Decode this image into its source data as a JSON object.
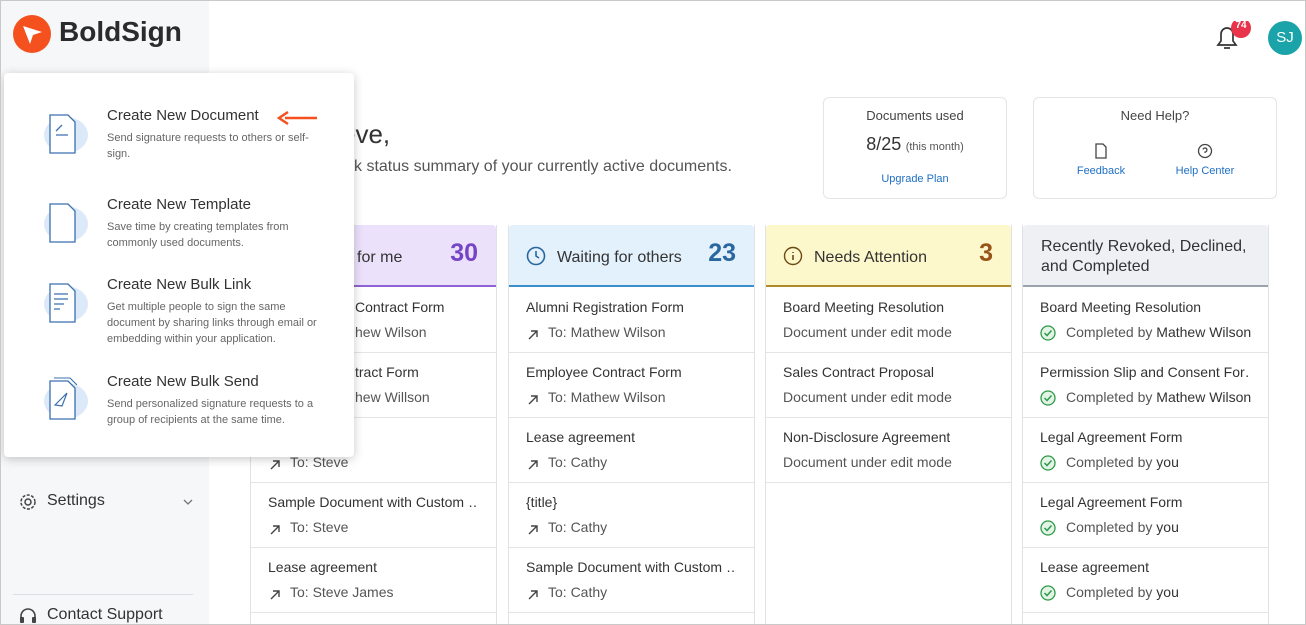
{
  "sidebar": {
    "logo": "BoldSign",
    "settings": "Settings",
    "contact_support": "Contact Support"
  },
  "header": {
    "notification_count": "74",
    "avatar": "SJ"
  },
  "greeting": {
    "title": "eve,",
    "subtitle": "k status summary of your currently active documents."
  },
  "create_menu": {
    "items": [
      {
        "title": "Create New Document",
        "description": "Send signature requests to others or self-sign."
      },
      {
        "title": "Create New Template",
        "description": "Save time by creating templates from commonly used documents."
      },
      {
        "title": "Create New Bulk Link",
        "description": "Get multiple people to sign the same document by sharing links through email or embedding within your application."
      },
      {
        "title": "Create New Bulk Send",
        "description": "Send personalized signature requests to a group of recipients at the same time."
      }
    ]
  },
  "usage": {
    "label": "Documents used",
    "used": "8/25",
    "period": "(this month)",
    "link": "Upgrade Plan"
  },
  "help": {
    "title": "Need Help?",
    "feedback": "Feedback",
    "help_center": "Help Center"
  },
  "columns": [
    {
      "title": "for me",
      "count": "30",
      "items": [
        {
          "name": "Contract Form",
          "detail": "hew Wilson"
        },
        {
          "name": "tract Form",
          "detail": "hew Willson"
        },
        {
          "detail": "To: Steve"
        },
        {
          "name": "Sample Document with Custom …",
          "detail": "To: Steve"
        },
        {
          "name": "Lease agreement",
          "detail": "To: Steve James"
        }
      ]
    },
    {
      "title": "Waiting for others",
      "count": "23",
      "items": [
        {
          "name": "Alumni Registration Form",
          "detail": "To: Mathew Wilson"
        },
        {
          "name": "Employee Contract Form",
          "detail": "To: Mathew Wilson"
        },
        {
          "name": "Lease agreement",
          "detail": "To: Cathy"
        },
        {
          "name": "{title}",
          "detail": "To: Cathy"
        },
        {
          "name": "Sample Document with Custom …",
          "detail": "To: Cathy"
        }
      ]
    },
    {
      "title": "Needs Attention",
      "count": "3",
      "items": [
        {
          "name": "Board Meeting Resolution",
          "detail": "Document under edit mode"
        },
        {
          "name": "Sales Contract Proposal",
          "detail": "Document under edit mode"
        },
        {
          "name": "Non-Disclosure Agreement",
          "detail": "Document under edit mode"
        }
      ]
    },
    {
      "title": "Recently Revoked, Declined, and Completed",
      "items": [
        {
          "name": "Board Meeting Resolution",
          "status": "Completed by",
          "who": "Mathew Wilson"
        },
        {
          "name": "Permission Slip and Consent For…",
          "status": "Completed by",
          "who": "Mathew Wilson"
        },
        {
          "name": "Legal Agreement Form",
          "status": "Completed by",
          "who": "you"
        },
        {
          "name": "Legal Agreement Form",
          "status": "Completed by",
          "who": "you"
        },
        {
          "name": "Lease agreement",
          "status": "Completed by",
          "who": "you"
        }
      ]
    }
  ]
}
